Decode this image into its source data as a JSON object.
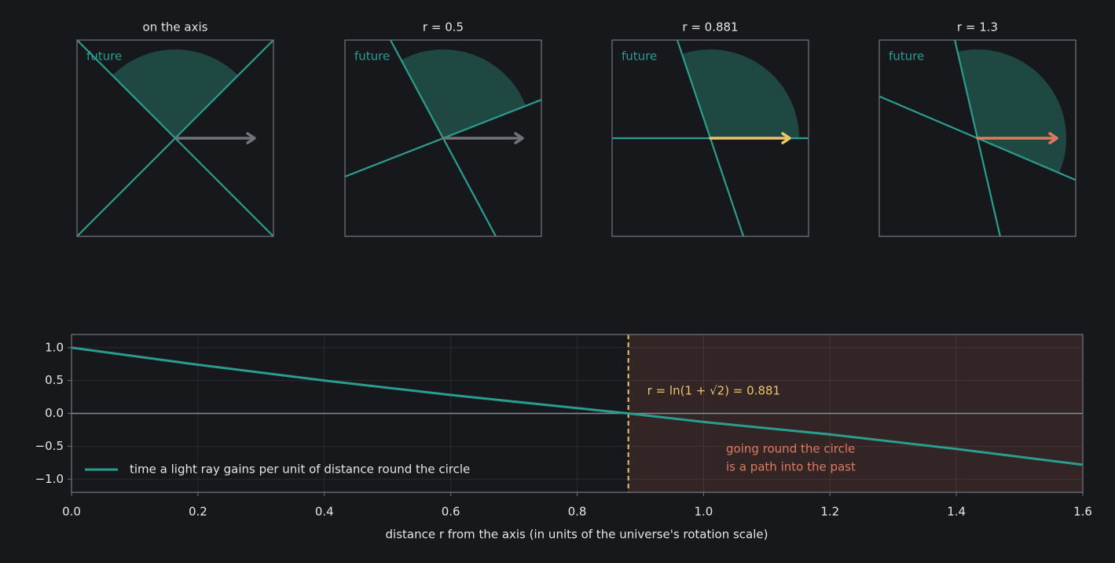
{
  "chart_data": [
    {
      "type": "lightcone",
      "title": "on the axis",
      "label": "future",
      "cone_edges": [
        45,
        135
      ],
      "arrow_color": "#707279"
    },
    {
      "type": "lightcone",
      "title": "r = 0.5",
      "label": "future",
      "cone_edges": [
        21.4,
        118.2
      ],
      "arrow_color": "#707279"
    },
    {
      "type": "lightcone",
      "title": "r = 0.881",
      "label": "future",
      "cone_edges": [
        0,
        108.6
      ],
      "arrow_color": "#e9c46a"
    },
    {
      "type": "lightcone",
      "title": "r = 1.3",
      "label": "future",
      "cone_edges": [
        -23.1,
        103
      ],
      "arrow_color": "#e07a5f"
    },
    {
      "type": "line",
      "x": [
        0,
        0.2,
        0.4,
        0.6,
        0.8,
        0.881,
        1.0,
        1.2,
        1.4,
        1.6
      ],
      "series": [
        {
          "name": "time a light ray gains per unit of distance round the circle",
          "color": "#2a9d8f",
          "values": [
            1.0,
            0.74,
            0.5,
            0.28,
            0.08,
            0,
            -0.13,
            -0.32,
            -0.54,
            -0.78
          ]
        }
      ],
      "xlabel": "distance r from the axis (in units of the universe's rotation scale)",
      "xlim": [
        0,
        1.6
      ],
      "ylim": [
        -1.2,
        1.2
      ],
      "xticks": [
        {
          "value": 0,
          "label": "0.0"
        },
        0.2,
        0.4,
        0.6,
        0.8,
        {
          "value": 1,
          "label": "1.0"
        },
        1.2,
        1.4,
        1.6
      ],
      "yticks": [
        {
          "value": -1,
          "label": "−1.0"
        },
        {
          "value": -0.5,
          "label": "−0.5"
        },
        {
          "value": 0,
          "label": "0.0"
        },
        0.5,
        {
          "value": 1,
          "label": "1.0"
        }
      ],
      "grid": true,
      "legend": "lower left",
      "threshold": 0.881,
      "threshold_color": "#e9c46a",
      "region_color": "#e07a5f",
      "annotation": "r = ln(1 + √2) = 0.881",
      "region_label": [
        "going round the circle",
        "is a path into the past"
      ]
    }
  ]
}
